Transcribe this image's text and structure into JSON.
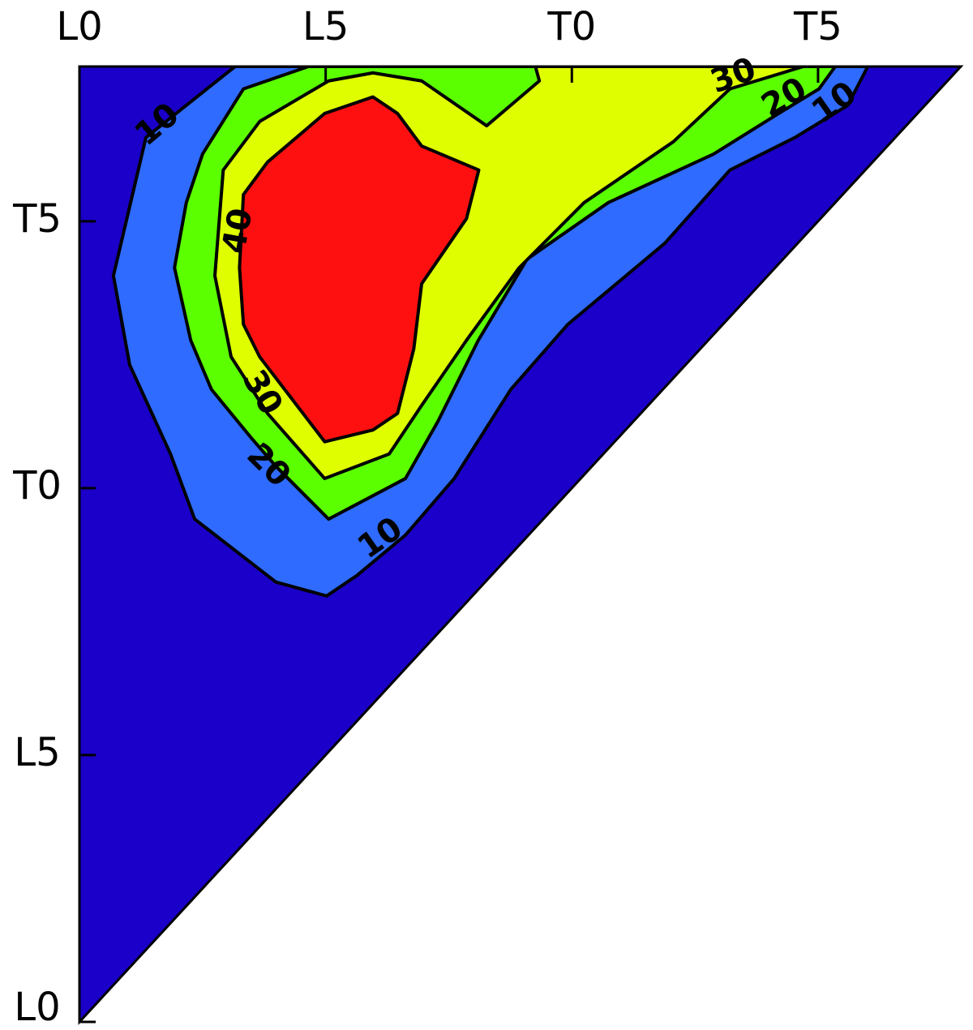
{
  "chart_data": {
    "type": "contour",
    "xlim": [
      0,
      17.9
    ],
    "ylim": [
      0,
      17.9
    ],
    "xticks": [
      {
        "value": 0,
        "label": "L0"
      },
      {
        "value": 5,
        "label": "L5"
      },
      {
        "value": 10,
        "label": "T0"
      },
      {
        "value": 15,
        "label": "T5"
      }
    ],
    "yticks": [
      {
        "value": 0,
        "label": "L0"
      },
      {
        "value": 5,
        "label": "L5"
      },
      {
        "value": 10,
        "label": "T0"
      },
      {
        "value": 15,
        "label": "T5"
      }
    ],
    "background_color": "#1a00c8",
    "levels": [
      10,
      20,
      30,
      40
    ],
    "level_colors": [
      "#2f6bff",
      "#5cff00",
      "#dfff00",
      "#ff1010"
    ],
    "regions": [
      {
        "level": 10,
        "x": [
          3.16,
          1.35,
          0.69,
          1.02,
          1.85,
          2.34,
          3.99,
          5.02,
          5.63,
          6.62,
          7.61,
          8.76,
          9.92,
          11.89,
          13.21,
          14.53,
          15.6,
          16.01
        ],
        "y": [
          17.9,
          16.57,
          13.98,
          12.31,
          10.64,
          9.42,
          8.24,
          7.98,
          8.36,
          9.12,
          10.18,
          11.85,
          13.07,
          14.59,
          15.96,
          16.57,
          17.17,
          17.9
        ]
      },
      {
        "level": 20,
        "x": [
          4.65,
          3.33,
          2.5,
          2.17,
          1.93,
          2.26,
          2.68,
          3.49,
          3.99,
          5.06,
          6.62,
          7.28,
          8.1,
          9.09,
          10.74,
          12.88,
          14.2,
          15.02,
          15.35
        ],
        "y": [
          17.9,
          17.48,
          16.26,
          15.35,
          14.13,
          12.77,
          11.85,
          10.94,
          10.41,
          9.42,
          10.18,
          11.25,
          12.77,
          14.29,
          15.35,
          16.26,
          17.02,
          17.48,
          17.9
        ]
      },
      {
        "level": 30,
        "x": [
          9.26,
          9.34,
          8.27,
          6.95,
          5.96,
          5.06,
          3.66,
          2.92,
          2.75,
          3.08,
          3.82,
          4.98,
          6.29,
          6.95,
          7.86,
          8.93,
          10.25,
          12.06,
          13.21,
          14.7
        ],
        "y": [
          17.9,
          17.63,
          16.79,
          17.63,
          17.78,
          17.63,
          16.87,
          15.96,
          13.98,
          12.46,
          11.4,
          10.18,
          10.64,
          11.55,
          12.77,
          14.13,
          15.35,
          16.49,
          17.48,
          17.9
        ]
      },
      {
        "level": 40,
        "x": [
          5.96,
          4.98,
          3.82,
          3.33,
          3.25,
          3.33,
          3.66,
          4.98,
          5.96,
          6.46,
          6.79,
          6.95,
          7.86,
          8.11,
          6.95,
          6.46
        ],
        "y": [
          17.33,
          17.02,
          16.11,
          15.5,
          14.13,
          13.07,
          12.46,
          10.87,
          11.09,
          11.4,
          12.61,
          13.83,
          15.05,
          15.96,
          16.41,
          17.02
        ]
      }
    ]
  }
}
